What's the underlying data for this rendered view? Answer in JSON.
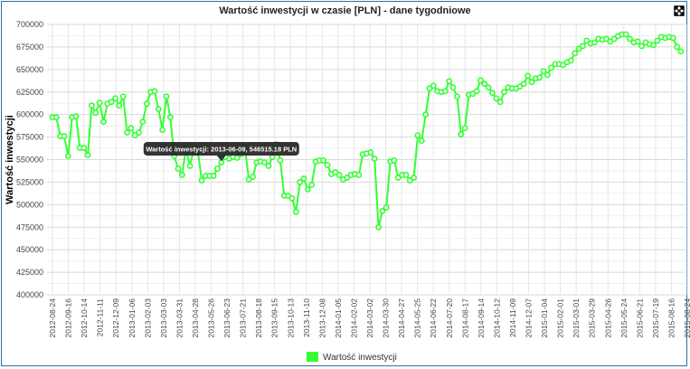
{
  "chart_data": {
    "type": "line",
    "title": "Wartość inwestycji w czasie [PLN] - dane tygodniowe",
    "ylabel": "Wartość inwestycji",
    "xlabel": "",
    "ylim": [
      400000,
      700000
    ],
    "y_ticks": [
      "400000",
      "425000",
      "450000",
      "475000",
      "500000",
      "525000",
      "550000",
      "575000",
      "600000",
      "625000",
      "650000",
      "675000",
      "700000"
    ],
    "x_ticks": [
      "2012-08-24",
      "2012-09-16",
      "2012-10-14",
      "2012-11-11",
      "2012-12-09",
      "2013-01-06",
      "2013-02-03",
      "2013-03-03",
      "2013-03-31",
      "2013-04-28",
      "2013-05-26",
      "2013-06-23",
      "2013-07-21",
      "2013-08-18",
      "2013-09-15",
      "2013-10-13",
      "2013-11-10",
      "2013-12-08",
      "2014-01-05",
      "2014-02-02",
      "2014-03-02",
      "2014-03-30",
      "2014-04-27",
      "2014-05-25",
      "2014-06-22",
      "2014-07-20",
      "2014-08-17",
      "2014-09-14",
      "2014-10-12",
      "2014-11-09",
      "2014-12-07",
      "2015-01-04",
      "2015-02-01",
      "2015-03-01",
      "2015-03-29",
      "2015-04-26",
      "2015-05-24",
      "2015-06-21",
      "2015-07-19",
      "2015-08-16",
      "2015-08-24"
    ],
    "grid": true,
    "legend_position": "bottom",
    "series": [
      {
        "name": "Wartość inwestycji",
        "color": "#33ff33",
        "values": [
          597000,
          597000,
          576000,
          576000,
          554000,
          597000,
          598000,
          563000,
          563000,
          555000,
          610000,
          602000,
          613000,
          592000,
          612000,
          614000,
          618000,
          610000,
          620000,
          580000,
          585000,
          577000,
          580000,
          592000,
          612000,
          625000,
          626000,
          606000,
          583000,
          620000,
          597000,
          554000,
          540000,
          533000,
          562000,
          543000,
          562000,
          560000,
          527000,
          532000,
          532000,
          532000,
          540000,
          547000,
          553000,
          551000,
          553000,
          552000,
          556000,
          564000,
          528000,
          531000,
          547000,
          548000,
          547000,
          543000,
          553000,
          567000,
          549000,
          510000,
          510000,
          507000,
          492000,
          525000,
          529000,
          517000,
          522000,
          548000,
          549000,
          549000,
          544000,
          534000,
          536000,
          533000,
          528000,
          530000,
          533000,
          534000,
          533000,
          556000,
          557000,
          558000,
          551000,
          475000,
          493000,
          497000,
          548000,
          549000,
          530000,
          533000,
          533000,
          527000,
          530000,
          577000,
          571000,
          600000,
          629000,
          632000,
          626000,
          625000,
          626000,
          637000,
          630000,
          620000,
          578000,
          585000,
          622000,
          623000,
          626000,
          638000,
          634000,
          630000,
          624000,
          618000,
          614000,
          625000,
          630000,
          629000,
          629000,
          631000,
          634000,
          643000,
          636000,
          640000,
          641000,
          648000,
          644000,
          652000,
          656000,
          656000,
          655000,
          658000,
          660000,
          668000,
          673000,
          676000,
          682000,
          679000,
          680000,
          684000,
          683000,
          684000,
          681000,
          684000,
          687000,
          689000,
          689000,
          684000,
          680000,
          681000,
          676000,
          680000,
          678000,
          677000,
          682000,
          686000,
          685000,
          686000,
          685000,
          675000,
          670000
        ]
      }
    ],
    "tooltip": {
      "text": "Wartość inwestycji: 2013-06-09, 546515.18 PLN",
      "anchor_index": 43,
      "anchor_value": 546515.18
    }
  },
  "icons": {
    "expand": "expand-icon"
  }
}
